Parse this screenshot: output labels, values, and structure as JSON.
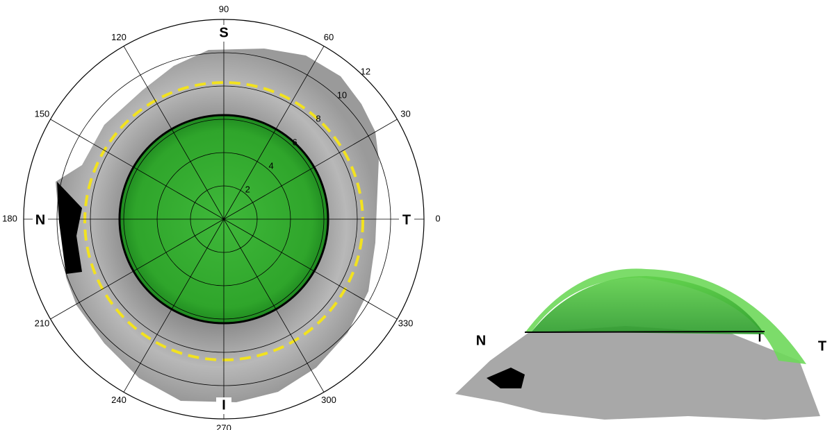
{
  "polar_map": {
    "angle_ticks": [
      0,
      30,
      60,
      90,
      120,
      150,
      180,
      210,
      240,
      270,
      300,
      330
    ],
    "ring_ticks": [
      2,
      4,
      6,
      8,
      10,
      12
    ],
    "directions": {
      "top": "S",
      "left": "N",
      "right": "T",
      "bottom": "I"
    }
  },
  "profile_view": {
    "left": "N",
    "right": "T",
    "marker": "I"
  }
}
